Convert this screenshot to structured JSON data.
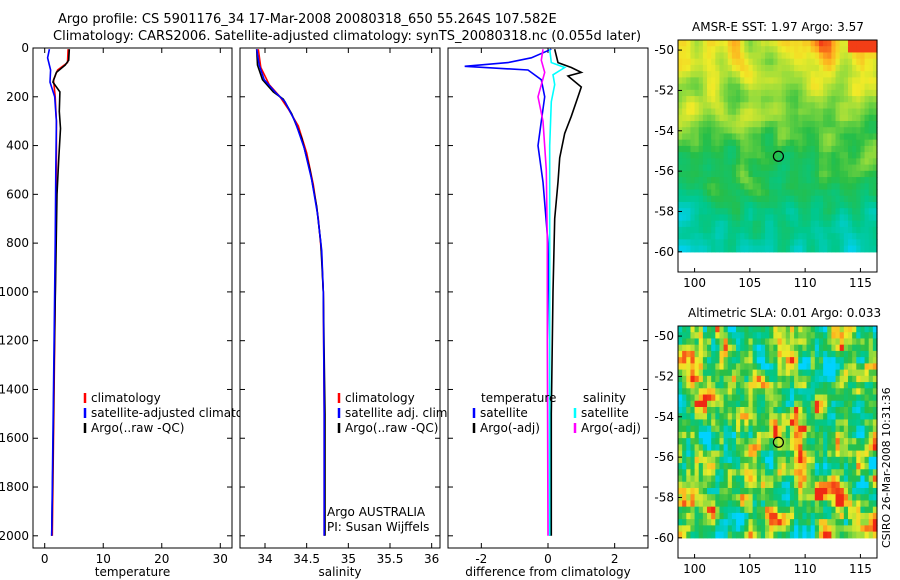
{
  "header": {
    "title_line1": "Argo profile: CS 5901176_34 17-Mar-2008 20080318_650 55.264S 107.582E",
    "title_line2": "Climatology: CARS2006. Satellite-adjusted climatology: synTS_20080318.nc (0.055d later)"
  },
  "colors": {
    "climatology": "#ff0000",
    "satellite": "#0000ff",
    "argo": "#000000",
    "satellite_salinity": "#00ffff",
    "argo_salinity": "#ff00ff"
  },
  "chart_data": [
    {
      "type": "line",
      "id": "temperature",
      "xlabel": "temperature",
      "ylabel": "",
      "xlim": [
        -2,
        32
      ],
      "ylim": [
        2050,
        0
      ],
      "xticks": [
        0,
        10,
        20,
        30
      ],
      "xtick_labels": [
        "0",
        "10",
        "20",
        "30"
      ],
      "yticks": [
        0,
        200,
        400,
        600,
        800,
        1000,
        1200,
        1400,
        1600,
        1800,
        2000
      ],
      "ytick_labels": [
        "0",
        "200",
        "400",
        "600",
        "800",
        "1000",
        "1200",
        "1400",
        "1600",
        "1800",
        "2000"
      ],
      "legend": [
        "climatology",
        "satellite-adjusted climatology",
        "Argo(..raw -QC)"
      ],
      "series": [
        {
          "name": "climatology",
          "color": "#ff0000",
          "points": [
            [
              4.0,
              5
            ],
            [
              3.9,
              60
            ],
            [
              2.2,
              90
            ],
            [
              1.5,
              130
            ],
            [
              1.8,
              200
            ],
            [
              2.0,
              300
            ],
            [
              2.0,
              500
            ],
            [
              1.9,
              800
            ],
            [
              1.7,
              1200
            ],
            [
              1.5,
              1600
            ],
            [
              1.3,
              2000
            ]
          ]
        },
        {
          "name": "Argo(..raw -QC)",
          "color": "#000000",
          "points": [
            [
              4.2,
              5
            ],
            [
              4.1,
              50
            ],
            [
              3.5,
              70
            ],
            [
              2.0,
              100
            ],
            [
              1.4,
              140
            ],
            [
              2.6,
              180
            ],
            [
              2.5,
              260
            ],
            [
              2.7,
              330
            ],
            [
              2.4,
              450
            ],
            [
              2.1,
              600
            ],
            [
              1.9,
              900
            ],
            [
              1.6,
              1300
            ],
            [
              1.4,
              1700
            ],
            [
              1.2,
              2000
            ]
          ]
        },
        {
          "name": "satellite-adjusted climatology",
          "color": "#0000ff",
          "points": [
            [
              0.8,
              5
            ],
            [
              0.5,
              40
            ],
            [
              1.0,
              90
            ],
            [
              0.9,
              140
            ],
            [
              1.7,
              200
            ],
            [
              2.0,
              300
            ],
            [
              1.9,
              500
            ],
            [
              1.8,
              800
            ],
            [
              1.6,
              1200
            ],
            [
              1.4,
              1600
            ],
            [
              1.2,
              2000
            ]
          ]
        }
      ]
    },
    {
      "type": "line",
      "id": "salinity",
      "xlabel": "salinity",
      "xlim": [
        33.7,
        36.1
      ],
      "ylim": [
        2050,
        0
      ],
      "xticks": [
        34,
        34.5,
        35,
        35.5,
        36
      ],
      "xtick_labels": [
        "34",
        "34.5",
        "35",
        "35.5",
        "36"
      ],
      "legend": [
        "climatology",
        "satellite adj. clim.",
        "Argo(..raw -QC)"
      ],
      "annotation": [
        "Argo AUSTRALIA",
        "PI: Susan Wijffels"
      ],
      "series": [
        {
          "name": "climatology",
          "color": "#ff0000",
          "points": [
            [
              33.92,
              5
            ],
            [
              33.95,
              80
            ],
            [
              34.05,
              150
            ],
            [
              34.18,
              200
            ],
            [
              34.28,
              250
            ],
            [
              34.4,
              320
            ],
            [
              34.5,
              430
            ],
            [
              34.58,
              560
            ],
            [
              34.64,
              700
            ],
            [
              34.68,
              850
            ],
            [
              34.7,
              1000
            ],
            [
              34.71,
              1500
            ],
            [
              34.71,
              2000
            ]
          ]
        },
        {
          "name": "Argo(..raw -QC)",
          "color": "#000000",
          "points": [
            [
              33.9,
              5
            ],
            [
              33.91,
              70
            ],
            [
              33.97,
              130
            ],
            [
              34.1,
              180
            ],
            [
              34.22,
              210
            ],
            [
              34.32,
              270
            ],
            [
              34.44,
              370
            ],
            [
              34.54,
              500
            ],
            [
              34.62,
              650
            ],
            [
              34.67,
              800
            ],
            [
              34.7,
              1000
            ],
            [
              34.72,
              1500
            ],
            [
              34.72,
              2000
            ]
          ]
        },
        {
          "name": "satellite adj. clim.",
          "color": "#0000ff",
          "points": [
            [
              33.9,
              5
            ],
            [
              33.93,
              70
            ],
            [
              33.99,
              130
            ],
            [
              34.12,
              180
            ],
            [
              34.24,
              220
            ],
            [
              34.36,
              300
            ],
            [
              34.47,
              410
            ],
            [
              34.56,
              540
            ],
            [
              34.63,
              680
            ],
            [
              34.68,
              830
            ],
            [
              34.7,
              1000
            ],
            [
              34.71,
              1500
            ],
            [
              34.71,
              2000
            ]
          ]
        }
      ]
    },
    {
      "type": "line",
      "id": "difference",
      "xlabel": "difference from climatology",
      "xlim": [
        -3.0,
        3.0
      ],
      "ylim": [
        2050,
        0
      ],
      "xticks": [
        -2,
        0,
        2
      ],
      "xtick_labels": [
        "-2",
        "0",
        "2"
      ],
      "legend_temperature": [
        "temperature",
        "satellite",
        "Argo(-adj)"
      ],
      "legend_salinity": [
        "salinity",
        "satellite",
        "Argo(-adj)"
      ],
      "series": [
        {
          "name": "temperature satellite",
          "color": "#0000ff",
          "points": [
            [
              0.1,
              5
            ],
            [
              -0.5,
              40
            ],
            [
              -1.2,
              60
            ],
            [
              -2.5,
              75
            ],
            [
              -0.6,
              90
            ],
            [
              -0.2,
              130
            ],
            [
              -0.1,
              200
            ],
            [
              -0.2,
              300
            ],
            [
              -0.3,
              400
            ],
            [
              -0.15,
              550
            ],
            [
              0.0,
              800
            ],
            [
              0.05,
              1200
            ],
            [
              0.05,
              2000
            ]
          ]
        },
        {
          "name": "temperature Argo(-adj)",
          "color": "#000000",
          "points": [
            [
              0.2,
              5
            ],
            [
              0.3,
              60
            ],
            [
              0.7,
              80
            ],
            [
              1.0,
              100
            ],
            [
              0.6,
              115
            ],
            [
              1.0,
              160
            ],
            [
              0.9,
              200
            ],
            [
              0.7,
              280
            ],
            [
              0.5,
              350
            ],
            [
              0.35,
              450
            ],
            [
              0.3,
              550
            ],
            [
              0.2,
              700
            ],
            [
              0.15,
              1000
            ],
            [
              0.1,
              1500
            ],
            [
              0.1,
              2000
            ]
          ]
        },
        {
          "name": "salinity satellite",
          "color": "#00ffff",
          "points": [
            [
              0.05,
              5
            ],
            [
              0.1,
              60
            ],
            [
              0.5,
              80
            ],
            [
              0.15,
              110
            ],
            [
              0.2,
              150
            ],
            [
              0.1,
              220
            ],
            [
              0.05,
              400
            ],
            [
              0.05,
              800
            ],
            [
              0.05,
              1200
            ],
            [
              0.05,
              2000
            ]
          ]
        },
        {
          "name": "salinity Argo(-adj)",
          "color": "#ff00ff",
          "points": [
            [
              -0.15,
              5
            ],
            [
              -0.2,
              50
            ],
            [
              -0.1,
              100
            ],
            [
              -0.3,
              200
            ],
            [
              -0.15,
              300
            ],
            [
              -0.05,
              500
            ],
            [
              -0.02,
              800
            ],
            [
              -0.02,
              1200
            ],
            [
              0.0,
              2000
            ]
          ]
        }
      ]
    },
    {
      "type": "heatmap",
      "id": "sst_map",
      "title": "AMSR-E SST: 1.97 Argo: 3.57",
      "xlim": [
        98.5,
        116.5
      ],
      "ylim": [
        -61,
        -49.5
      ],
      "xticks": [
        100,
        105,
        110,
        115
      ],
      "xtick_labels": [
        "100",
        "105",
        "110",
        "115"
      ],
      "yticks": [
        -50,
        -52,
        -54,
        -56,
        -58,
        -60
      ],
      "ytick_labels": [
        "-50",
        "-52",
        "-54",
        "-56",
        "-58",
        "-60"
      ],
      "data_ylim": [
        -60,
        -49.5
      ],
      "marker": {
        "lon": 107.582,
        "lat": -55.264
      }
    },
    {
      "type": "heatmap",
      "id": "sla_map",
      "title": "Altimetric SLA: 0.01 Argo: 0.033",
      "xlim": [
        98.5,
        116.5
      ],
      "ylim": [
        -61,
        -49.5
      ],
      "xticks": [
        100,
        105,
        110,
        115
      ],
      "xtick_labels": [
        "100",
        "105",
        "110",
        "115"
      ],
      "yticks": [
        -50,
        -52,
        -54,
        -56,
        -58,
        -60
      ],
      "ytick_labels": [
        "-50",
        "-52",
        "-54",
        "-56",
        "-58",
        "-60"
      ],
      "data_ylim": [
        -60,
        -49.5
      ],
      "marker": {
        "lon": 107.582,
        "lat": -55.264
      }
    }
  ],
  "watermark": "CSIRO 26-Mar-2008 10:31:36"
}
